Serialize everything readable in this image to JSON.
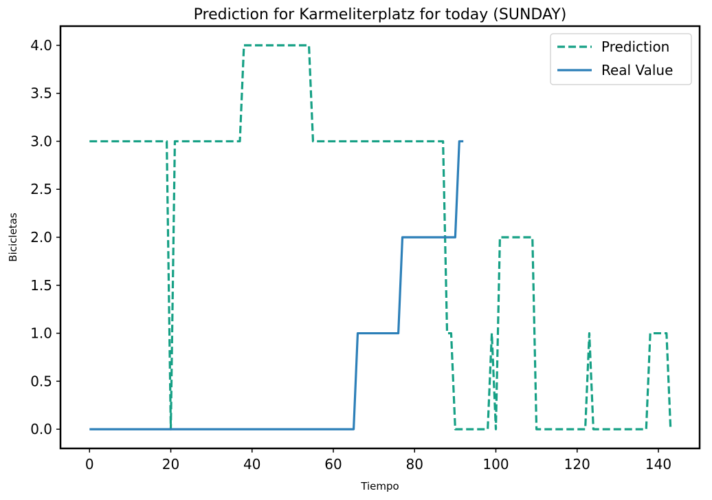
{
  "chart_data": {
    "type": "line",
    "title": "Prediction for Karmeliterplatz for today (SUNDAY)",
    "xlabel": "Tiempo",
    "ylabel": "Bicicletas",
    "xlim": [
      -7.15,
      150.15
    ],
    "ylim": [
      -0.2,
      4.2
    ],
    "xticks": [
      0,
      20,
      40,
      60,
      80,
      100,
      120,
      140
    ],
    "yticks": [
      0.0,
      0.5,
      1.0,
      1.5,
      2.0,
      2.5,
      3.0,
      3.5,
      4.0
    ],
    "ytick_labels": [
      "0.0",
      "0.5",
      "1.0",
      "1.5",
      "2.0",
      "2.5",
      "3.0",
      "3.5",
      "4.0"
    ],
    "grid": false,
    "legend": "top-right",
    "series": [
      {
        "name": "Prediction",
        "style": "dashed",
        "color": "#16a085",
        "x": [
          0,
          1,
          2,
          3,
          4,
          5,
          6,
          7,
          8,
          9,
          10,
          11,
          12,
          13,
          14,
          15,
          16,
          17,
          18,
          19,
          20,
          21,
          22,
          23,
          24,
          25,
          26,
          27,
          28,
          29,
          30,
          31,
          32,
          33,
          34,
          35,
          36,
          37,
          38,
          39,
          40,
          41,
          42,
          43,
          44,
          45,
          46,
          47,
          48,
          49,
          50,
          51,
          52,
          53,
          54,
          55,
          56,
          57,
          58,
          59,
          60,
          61,
          62,
          63,
          64,
          65,
          66,
          67,
          68,
          69,
          70,
          71,
          72,
          73,
          74,
          75,
          76,
          77,
          78,
          79,
          80,
          81,
          82,
          83,
          84,
          85,
          86,
          87,
          88,
          89,
          90,
          91,
          92,
          93,
          94,
          95,
          96,
          97,
          98,
          99,
          100,
          101,
          102,
          103,
          104,
          105,
          106,
          107,
          108,
          109,
          110,
          111,
          112,
          113,
          114,
          115,
          116,
          117,
          118,
          119,
          120,
          121,
          122,
          123,
          124,
          125,
          126,
          127,
          128,
          129,
          130,
          131,
          132,
          133,
          134,
          135,
          136,
          137,
          138,
          139,
          140,
          141,
          142,
          143
        ],
        "y": [
          3,
          3,
          3,
          3,
          3,
          3,
          3,
          3,
          3,
          3,
          3,
          3,
          3,
          3,
          3,
          3,
          3,
          3,
          3,
          3,
          0,
          3,
          3,
          3,
          3,
          3,
          3,
          3,
          3,
          3,
          3,
          3,
          3,
          3,
          3,
          3,
          3,
          3,
          4,
          4,
          4,
          4,
          4,
          4,
          4,
          4,
          4,
          4,
          4,
          4,
          4,
          4,
          4,
          4,
          4,
          3,
          3,
          3,
          3,
          3,
          3,
          3,
          3,
          3,
          3,
          3,
          3,
          3,
          3,
          3,
          3,
          3,
          3,
          3,
          3,
          3,
          3,
          3,
          3,
          3,
          3,
          3,
          3,
          3,
          3,
          3,
          3,
          3,
          1,
          1,
          0,
          0,
          0,
          0,
          0,
          0,
          0,
          0,
          0,
          1,
          0,
          2,
          2,
          2,
          2,
          2,
          2,
          2,
          2,
          2,
          0,
          0,
          0,
          0,
          0,
          0,
          0,
          0,
          0,
          0,
          0,
          0,
          0,
          1,
          0,
          0,
          0,
          0,
          0,
          0,
          0,
          0,
          0,
          0,
          0,
          0,
          0,
          0,
          1,
          1,
          1,
          1,
          1,
          0
        ]
      },
      {
        "name": "Real Value",
        "style": "solid",
        "color": "#2c7fb8",
        "x": [
          0,
          65,
          66,
          76,
          77,
          90,
          91,
          92
        ],
        "y": [
          0,
          0,
          1,
          1,
          2,
          2,
          3,
          3
        ]
      }
    ]
  }
}
